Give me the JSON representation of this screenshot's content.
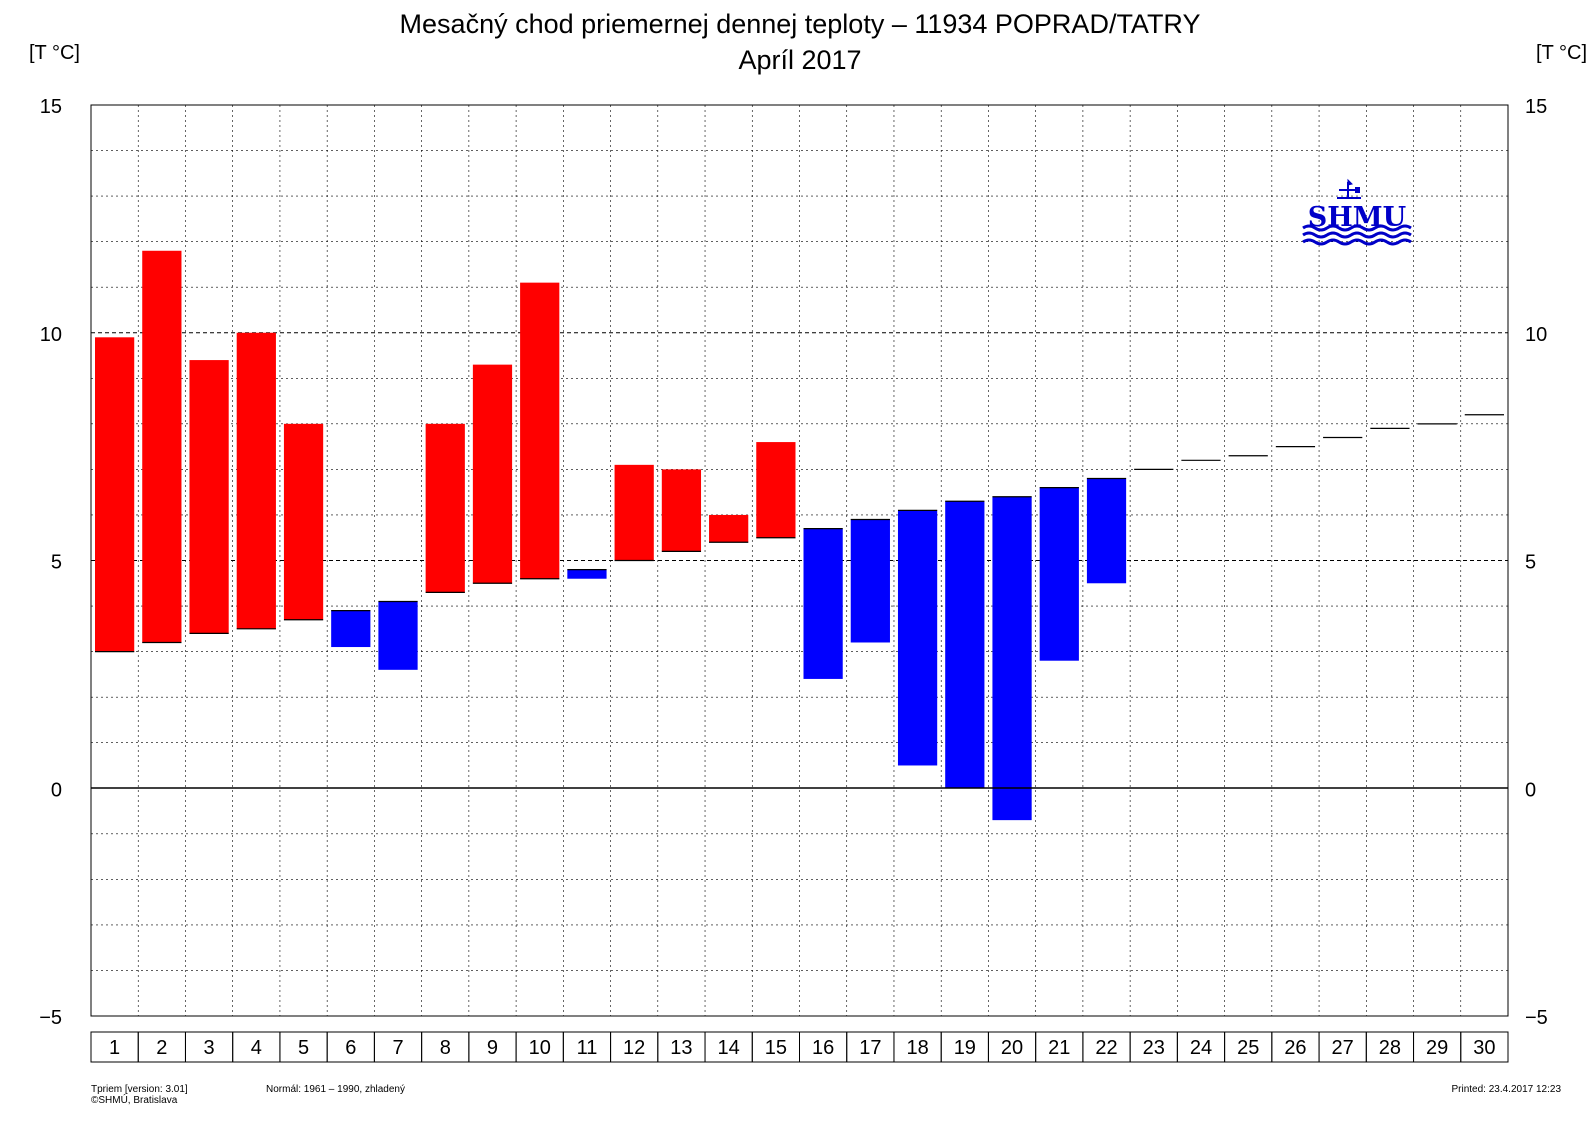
{
  "chart_data": {
    "type": "bar",
    "title": "Mesačný chod priemernej dennej teploty – 11934 POPRAD/TATRY",
    "subtitle": "Apríl 2017",
    "ylabel_left": "[T °C]",
    "ylabel_right": "[T °C]",
    "ylim": [
      -5,
      15
    ],
    "yticks": [
      "15",
      "10",
      "5",
      "0",
      "−5"
    ],
    "ytick_values": [
      15,
      10,
      5,
      0,
      -5
    ],
    "minor_grid_step": 1,
    "categories": [
      "1",
      "2",
      "3",
      "4",
      "5",
      "6",
      "7",
      "8",
      "9",
      "10",
      "11",
      "12",
      "13",
      "14",
      "15",
      "16",
      "17",
      "18",
      "19",
      "20",
      "21",
      "22",
      "23",
      "24",
      "25",
      "26",
      "27",
      "28",
      "29",
      "30"
    ],
    "series": [
      {
        "values": [
          9.9,
          11.8,
          9.4,
          10.0,
          8.0,
          3.1,
          2.6,
          8.0,
          9.3,
          11.1,
          4.6,
          7.1,
          7.0,
          6.0,
          7.6,
          2.4,
          3.2,
          0.5,
          0.0,
          -0.7,
          2.8,
          4.5,
          null,
          null,
          null,
          null,
          null,
          null,
          null,
          null
        ]
      },
      {
        "values": [
          3.0,
          3.2,
          3.4,
          3.5,
          3.7,
          3.9,
          4.1,
          4.3,
          4.5,
          4.6,
          4.8,
          5.0,
          5.2,
          5.4,
          5.5,
          5.7,
          5.9,
          6.1,
          6.3,
          6.4,
          6.6,
          6.8,
          7.0,
          7.2,
          7.3,
          7.5,
          7.7,
          7.9,
          8.0,
          8.2
        ]
      }
    ],
    "colors": {
      "above_normal": "#ff0000",
      "below_normal": "#0000ff",
      "normal_line": "#000000",
      "grid": "#000000"
    },
    "grid": true
  },
  "logo": {
    "text": "SHMU",
    "color": "#0000c8"
  },
  "footer": {
    "line1": "Tpriem [version: 3.01]",
    "line2": "©SHMÚ, Bratislava",
    "normal": "Normál: 1961 – 1990, zhladený",
    "printed": "Printed: 23.4.2017  12:23"
  }
}
